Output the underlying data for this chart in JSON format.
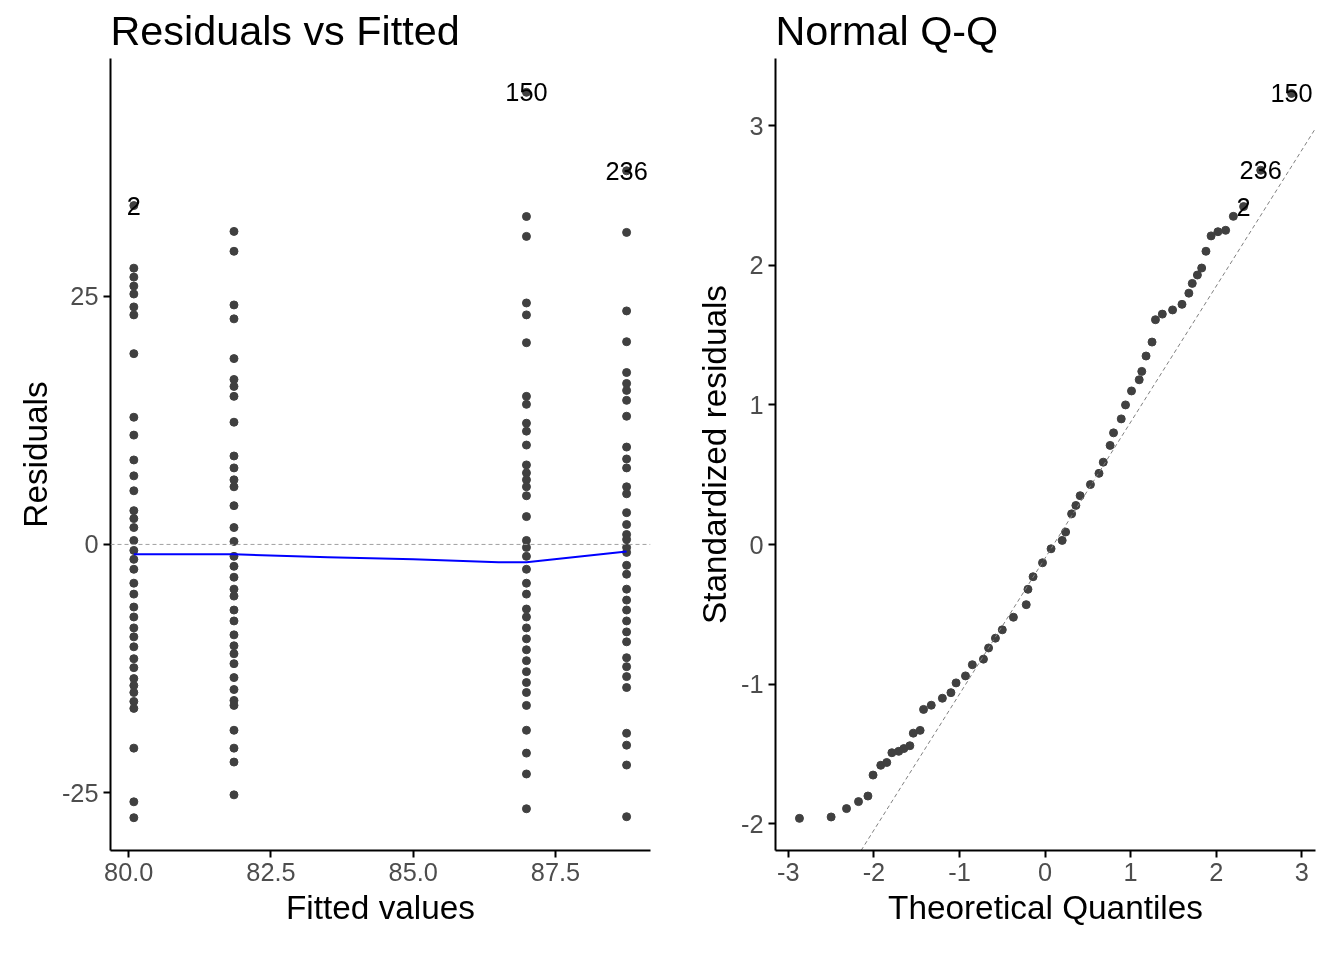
{
  "chart_data": [
    {
      "type": "scatter",
      "title": "Residuals vs Fitted",
      "xlabel": "Fitted values",
      "ylabel": "Residuals",
      "xlim": [
        79.68,
        89.17
      ],
      "ylim": [
        -30.8,
        48.9
      ],
      "xticks": [
        {
          "value": 80,
          "label": "80.0"
        },
        82.5,
        {
          "value": 85,
          "label": "85.0"
        },
        87.5
      ],
      "yticks": [
        -25,
        0,
        25
      ],
      "grid": false,
      "series": [
        {
          "color": "#404040",
          "marker": "circle",
          "x": [
            80.09,
            80.09,
            80.09,
            80.09,
            80.09,
            80.09,
            80.09,
            80.09,
            80.09,
            80.09,
            80.09,
            80.09,
            80.09,
            80.09,
            80.09,
            80.09,
            80.09,
            80.09,
            80.09,
            80.09,
            80.09,
            80.09,
            80.09,
            80.09,
            80.09,
            80.09,
            80.09,
            80.09,
            80.09,
            80.09,
            80.09,
            80.09,
            80.09,
            80.09,
            80.09,
            80.09,
            80.09
          ],
          "values": [
            34.1,
            27.8,
            26.9,
            26.0,
            25.2,
            23.9,
            23.1,
            19.2,
            12.8,
            11.0,
            8.5,
            6.9,
            5.4,
            3.4,
            1.7,
            0.4,
            -0.6,
            -2.5,
            -3.9,
            -6.3,
            -7.3,
            -8.4,
            -9.3,
            -10.3,
            -11.5,
            -12.4,
            -13.5,
            -14.2,
            -14.9,
            -15.8,
            -16.5,
            -20.5,
            -25.9,
            -27.5,
            -5.0,
            -1.5,
            2.6
          ]
        },
        {
          "color": "#404040",
          "marker": "circle",
          "x": [
            81.85,
            81.85,
            81.85,
            81.85,
            81.85,
            81.85,
            81.85,
            81.85,
            81.85,
            81.85,
            81.85,
            81.85,
            81.85,
            81.85,
            81.85,
            81.85,
            81.85,
            81.85,
            81.85,
            81.85,
            81.85,
            81.85,
            81.85,
            81.85,
            81.85,
            81.85,
            81.85,
            81.85,
            81.85,
            81.85,
            81.85,
            81.85,
            81.85,
            81.85,
            81.85
          ],
          "values": [
            31.5,
            29.5,
            24.1,
            22.7,
            18.7,
            16.6,
            15.9,
            14.9,
            12.3,
            8.9,
            7.7,
            6.5,
            5.8,
            3.9,
            1.7,
            0.3,
            -1.2,
            -2.2,
            -3.3,
            -4.5,
            -5.2,
            -6.6,
            -7.7,
            -9.1,
            -10.2,
            -11.0,
            -12.0,
            -13.4,
            -14.6,
            -15.7,
            -16.2,
            -18.7,
            -20.5,
            -21.9,
            -25.2
          ]
        },
        {
          "color": "#404040",
          "marker": "circle",
          "x": [
            86.99,
            86.99,
            86.99,
            86.99,
            86.99,
            86.99,
            86.99,
            86.99,
            86.99,
            86.99,
            86.99,
            86.99,
            86.99,
            86.99,
            86.99,
            86.99,
            86.99,
            86.99,
            86.99,
            86.99,
            86.99,
            86.99,
            86.99,
            86.99,
            86.99,
            86.99,
            86.99,
            86.99,
            86.99,
            86.99,
            86.99,
            86.99,
            86.99,
            86.99,
            86.99,
            86.99,
            86.99
          ],
          "values": [
            45.5,
            33.0,
            31.0,
            24.3,
            23.1,
            20.3,
            14.9,
            14.1,
            12.2,
            11.4,
            10.0,
            8.0,
            7.2,
            6.5,
            5.8,
            4.9,
            2.8,
            0.4,
            -0.3,
            -1.2,
            -2.5,
            -3.9,
            -5.0,
            -6.5,
            -7.3,
            -8.4,
            -9.5,
            -10.6,
            -11.7,
            -12.8,
            -13.9,
            -14.9,
            -16.2,
            -18.7,
            -21.0,
            -23.1,
            -26.6
          ]
        },
        {
          "color": "#404040",
          "marker": "circle",
          "x": [
            88.75,
            88.75,
            88.75,
            88.75,
            88.75,
            88.75,
            88.75,
            88.75,
            88.75,
            88.75,
            88.75,
            88.75,
            88.75,
            88.75,
            88.75,
            88.75,
            88.75,
            88.75,
            88.75,
            88.75,
            88.75,
            88.75,
            88.75,
            88.75,
            88.75,
            88.75,
            88.75,
            88.75,
            88.75,
            88.75,
            88.75,
            88.75,
            88.75,
            88.75,
            88.75,
            88.75
          ],
          "values": [
            37.6,
            31.4,
            23.5,
            20.4,
            17.3,
            16.2,
            15.5,
            14.5,
            12.9,
            9.8,
            8.6,
            7.7,
            5.8,
            5.1,
            3.2,
            2.0,
            1.0,
            -0.3,
            -0.8,
            -2.1,
            -3.0,
            -5.6,
            -6.6,
            -7.7,
            -8.8,
            -9.8,
            -11.4,
            -12.3,
            -13.3,
            -14.4,
            -19.0,
            -20.2,
            -22.2,
            -27.4,
            -4.5,
            0.5
          ]
        },
        {
          "type": "line",
          "color": "#0000ff",
          "line_style": "solid",
          "marker": "none",
          "x": [
            80.09,
            81.85,
            83.5,
            85.0,
            86.5,
            86.99,
            88.75
          ],
          "values": [
            -1.0,
            -1.0,
            -1.3,
            -1.5,
            -1.8,
            -1.8,
            -0.7
          ]
        }
      ],
      "ref_lines": [
        {
          "axis": "y",
          "value": 0,
          "color": "#a0a0a0",
          "line_style": "dashed"
        }
      ],
      "annotations": [
        {
          "text": "2",
          "x": 80.09,
          "y": 34.1
        },
        {
          "text": "150",
          "x": 86.99,
          "y": 45.5
        },
        {
          "text": "236",
          "x": 88.75,
          "y": 37.6
        }
      ]
    },
    {
      "type": "scatter",
      "title": "Normal Q-Q",
      "xlabel": "Theoretical Quantiles",
      "ylabel": "Standardized residuals",
      "xlim": [
        -3.15,
        3.16
      ],
      "ylim": [
        -2.19,
        3.48
      ],
      "xticks": [
        -3,
        -2,
        -1,
        0,
        1,
        2,
        3
      ],
      "yticks": [
        -2,
        -1,
        0,
        1,
        2,
        3
      ],
      "grid": false,
      "series": [
        {
          "color": "#404040",
          "marker": "circle",
          "x": [
            -2.87,
            -2.5,
            -2.32,
            -2.18,
            -2.07,
            -2.01,
            -1.92,
            -1.85,
            -1.79,
            -1.71,
            -1.65,
            -1.58,
            -1.54,
            -1.46,
            -1.42,
            -1.33,
            -1.2,
            -1.1,
            -1.04,
            -0.93,
            -0.85,
            -0.72,
            -0.66,
            -0.58,
            -0.5,
            -0.37,
            -0.22,
            -0.2,
            -0.14,
            -0.03,
            0.07,
            0.2,
            0.24,
            0.31,
            0.36,
            0.41,
            0.53,
            0.63,
            0.68,
            0.76,
            0.8,
            0.89,
            0.94,
            1.01,
            1.1,
            1.13,
            1.18,
            1.25,
            1.29,
            1.37,
            1.49,
            1.6,
            1.68,
            1.72,
            1.78,
            1.83,
            1.88,
            1.94,
            2.02,
            2.11,
            2.2,
            2.32,
            2.52,
            2.88
          ],
          "values": [
            -1.96,
            -1.95,
            -1.89,
            -1.84,
            -1.8,
            -1.65,
            -1.58,
            -1.56,
            -1.49,
            -1.48,
            -1.46,
            -1.44,
            -1.35,
            -1.33,
            -1.18,
            -1.15,
            -1.1,
            -1.06,
            -0.99,
            -0.94,
            -0.86,
            -0.82,
            -0.74,
            -0.67,
            -0.61,
            -0.52,
            -0.43,
            -0.32,
            -0.23,
            -0.13,
            -0.03,
            0.03,
            0.09,
            0.22,
            0.28,
            0.35,
            0.43,
            0.51,
            0.59,
            0.71,
            0.8,
            0.9,
            1.0,
            1.1,
            1.18,
            1.24,
            1.35,
            1.45,
            1.61,
            1.65,
            1.68,
            1.72,
            1.8,
            1.87,
            1.93,
            1.98,
            2.1,
            2.21,
            2.24,
            2.25,
            2.35,
            2.42,
            2.68,
            3.23
          ]
        },
        {
          "type": "line",
          "color": "#808080",
          "line_style": "dashed",
          "marker": "none",
          "x": [
            -2.15,
            3.15
          ],
          "values": [
            -2.19,
            2.97
          ]
        }
      ],
      "annotations": [
        {
          "text": "150",
          "x": 2.88,
          "y": 3.23
        },
        {
          "text": "236",
          "x": 2.52,
          "y": 2.68
        },
        {
          "text": "2",
          "x": 2.32,
          "y": 2.42
        }
      ]
    }
  ]
}
